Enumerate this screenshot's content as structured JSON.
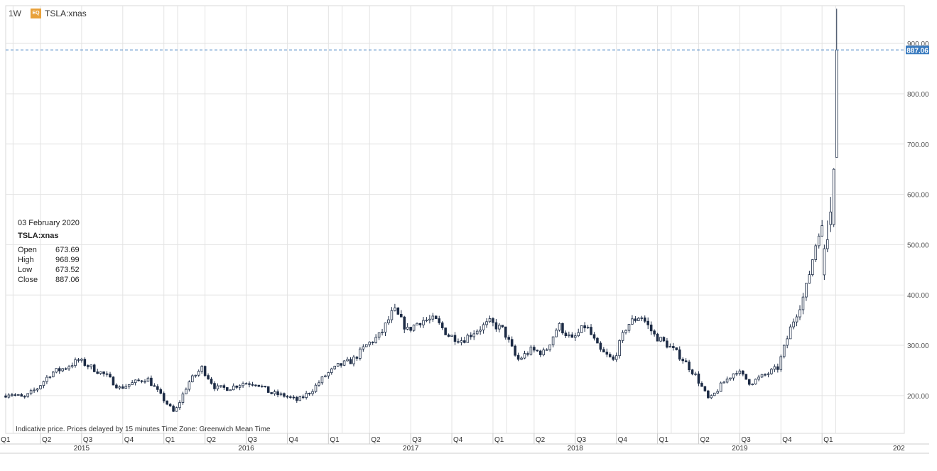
{
  "header": {
    "timeframe": "1W",
    "badge": "EQ",
    "symbol": "TSLA:xnas"
  },
  "info_box": {
    "date": "03 February 2020",
    "symbol": "TSLA:xnas",
    "rows": [
      {
        "label": "Open",
        "value": "673.69"
      },
      {
        "label": "High",
        "value": "968.99"
      },
      {
        "label": "Low",
        "value": "673.52"
      },
      {
        "label": "Close",
        "value": "887.06"
      }
    ]
  },
  "footer": {
    "disclaimer": "Indicative price. Prices delayed by 15 minutes    Time Zone: Greenwich Mean Time"
  },
  "colors": {
    "up_fill": "#ffffff",
    "down_fill": "#1c2b45",
    "candle_outline": "#1c2b45",
    "grid": "#e3e3e3",
    "price_line": "#3a7bbf",
    "price_badge": "#3a7bbf"
  },
  "chart_data": {
    "type": "candlestick",
    "interval": "1W",
    "symbol": "TSLA:xnas",
    "ylim": [
      125,
      975
    ],
    "y_ticks": [
      200,
      300,
      400,
      500,
      600,
      700,
      800,
      900
    ],
    "y_tick_labels": [
      "200.00",
      "300.00",
      "400.00",
      "500.00",
      "600.00",
      "700.00",
      "800.00",
      "900.00"
    ],
    "last_price": 887.06,
    "last_price_label": "887.06",
    "quarter_labels": [
      {
        "label": "Q1",
        "x": "2015-01"
      },
      {
        "label": "Q2",
        "x": "2015-04"
      },
      {
        "label": "Q3",
        "x": "2015-07"
      },
      {
        "label": "Q4",
        "x": "2015-10"
      },
      {
        "label": "Q1",
        "x": "2016-01"
      },
      {
        "label": "Q2",
        "x": "2016-04"
      },
      {
        "label": "Q3",
        "x": "2016-07"
      },
      {
        "label": "Q4",
        "x": "2016-10"
      },
      {
        "label": "Q1",
        "x": "2017-01"
      },
      {
        "label": "Q2",
        "x": "2017-04"
      },
      {
        "label": "Q3",
        "x": "2017-07"
      },
      {
        "label": "Q4",
        "x": "2017-10"
      },
      {
        "label": "Q1",
        "x": "2018-01"
      },
      {
        "label": "Q2",
        "x": "2018-04"
      },
      {
        "label": "Q3",
        "x": "2018-07"
      },
      {
        "label": "Q4",
        "x": "2018-10"
      },
      {
        "label": "Q1",
        "x": "2019-01"
      },
      {
        "label": "Q2",
        "x": "2019-04"
      },
      {
        "label": "Q3",
        "x": "2019-07"
      },
      {
        "label": "Q4",
        "x": "2019-10"
      },
      {
        "label": "Q1",
        "x": "2020-01"
      }
    ],
    "year_labels": [
      {
        "label": "2015",
        "x": "2015-07"
      },
      {
        "label": "2016",
        "x": "2016-07"
      },
      {
        "label": "2017",
        "x": "2017-07"
      },
      {
        "label": "2018",
        "x": "2018-07"
      },
      {
        "label": "2019",
        "x": "2019-07"
      },
      {
        "label": "202",
        "x": "2020-07"
      }
    ],
    "anchors": [
      [
        "2015-01",
        195
      ],
      [
        "2015-02",
        205
      ],
      [
        "2015-03",
        195
      ],
      [
        "2015-04",
        215
      ],
      [
        "2015-05",
        245
      ],
      [
        "2015-06",
        255
      ],
      [
        "2015-07",
        270
      ],
      [
        "2015-08",
        255
      ],
      [
        "2015-09",
        240
      ],
      [
        "2015-10",
        215
      ],
      [
        "2015-11",
        225
      ],
      [
        "2015-12",
        235
      ],
      [
        "2016-01",
        200
      ],
      [
        "2016-02",
        165
      ],
      [
        "2016-03",
        225
      ],
      [
        "2016-04",
        255
      ],
      [
        "2016-05",
        215
      ],
      [
        "2016-06",
        215
      ],
      [
        "2016-07",
        225
      ],
      [
        "2016-08",
        225
      ],
      [
        "2016-09",
        205
      ],
      [
        "2016-10",
        200
      ],
      [
        "2016-11",
        190
      ],
      [
        "2016-12",
        210
      ],
      [
        "2017-01",
        240
      ],
      [
        "2017-02",
        260
      ],
      [
        "2017-03",
        270
      ],
      [
        "2017-04",
        300
      ],
      [
        "2017-05",
        320
      ],
      [
        "2017-06",
        370
      ],
      [
        "2017-07",
        330
      ],
      [
        "2017-08",
        350
      ],
      [
        "2017-09",
        350
      ],
      [
        "2017-10",
        320
      ],
      [
        "2017-11",
        310
      ],
      [
        "2017-12",
        330
      ],
      [
        "2018-01",
        345
      ],
      [
        "2018-02",
        330
      ],
      [
        "2018-03",
        270
      ],
      [
        "2018-04",
        290
      ],
      [
        "2018-05",
        285
      ],
      [
        "2018-06",
        340
      ],
      [
        "2018-07",
        310
      ],
      [
        "2018-08",
        340
      ],
      [
        "2018-09",
        290
      ],
      [
        "2018-10",
        270
      ],
      [
        "2018-11",
        340
      ],
      [
        "2018-12",
        360
      ],
      [
        "2019-01",
        320
      ],
      [
        "2019-02",
        300
      ],
      [
        "2019-03",
        275
      ],
      [
        "2019-04",
        240
      ],
      [
        "2019-05",
        190
      ],
      [
        "2019-06",
        225
      ],
      [
        "2019-07",
        250
      ],
      [
        "2019-08",
        225
      ],
      [
        "2019-09",
        240
      ],
      [
        "2019-10",
        255
      ],
      [
        "2019-11",
        340
      ],
      [
        "2019-12",
        405
      ],
      [
        "2020-01",
        530
      ]
    ],
    "final_candles": [
      {
        "date": "2020-01-06",
        "open": 440,
        "high": 500,
        "low": 430,
        "close": 492
      },
      {
        "date": "2020-01-13",
        "open": 492,
        "high": 548,
        "low": 485,
        "close": 510
      },
      {
        "date": "2020-01-20",
        "open": 540,
        "high": 595,
        "low": 525,
        "close": 565
      },
      {
        "date": "2020-01-27",
        "open": 540,
        "high": 652,
        "low": 535,
        "close": 650
      },
      {
        "date": "2020-02-03",
        "open": 673.69,
        "high": 968.99,
        "low": 673.52,
        "close": 887.06
      }
    ]
  }
}
